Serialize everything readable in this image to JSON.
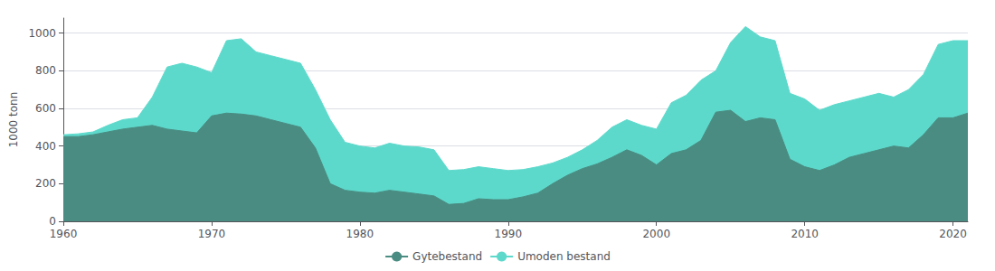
{
  "chart_data": {
    "type": "area",
    "y_label": "1000 tonn",
    "x": [
      1960,
      1961,
      1962,
      1963,
      1964,
      1965,
      1966,
      1967,
      1968,
      1969,
      1970,
      1971,
      1972,
      1973,
      1974,
      1975,
      1976,
      1977,
      1978,
      1979,
      1980,
      1981,
      1982,
      1983,
      1984,
      1985,
      1986,
      1987,
      1988,
      1989,
      1990,
      1991,
      1992,
      1993,
      1994,
      1995,
      1996,
      1997,
      1998,
      1999,
      2000,
      2001,
      2002,
      2003,
      2004,
      2005,
      2006,
      2007,
      2008,
      2009,
      2010,
      2011,
      2012,
      2013,
      2014,
      2015,
      2016,
      2017,
      2018,
      2019,
      2020,
      2021
    ],
    "series": [
      {
        "name": "Gytebestand",
        "color": "#4a8c82",
        "values": [
          450,
          450,
          460,
          475,
          490,
          500,
          510,
          490,
          480,
          470,
          560,
          575,
          570,
          560,
          540,
          520,
          500,
          390,
          200,
          165,
          155,
          150,
          165,
          155,
          145,
          135,
          90,
          95,
          120,
          115,
          115,
          130,
          150,
          200,
          245,
          280,
          305,
          340,
          380,
          350,
          300,
          360,
          380,
          430,
          580,
          590,
          530,
          550,
          540,
          330,
          290,
          270,
          300,
          340,
          360,
          380,
          400,
          390,
          460,
          550,
          550,
          575
        ]
      },
      {
        "name": "Umoden bestand",
        "color": "#5dd9cb",
        "values": [
          460,
          465,
          475,
          510,
          540,
          550,
          660,
          820,
          840,
          820,
          790,
          960,
          970,
          900,
          880,
          860,
          840,
          700,
          540,
          420,
          400,
          390,
          415,
          400,
          395,
          380,
          270,
          275,
          290,
          280,
          270,
          275,
          290,
          310,
          340,
          380,
          430,
          500,
          540,
          510,
          490,
          630,
          670,
          750,
          800,
          950,
          1035,
          980,
          960,
          680,
          650,
          590,
          620,
          640,
          660,
          680,
          660,
          700,
          780,
          940,
          960,
          960
        ]
      }
    ],
    "xlim": [
      1960,
      2021
    ],
    "xticks": [
      1960,
      1970,
      1980,
      1990,
      2000,
      2010,
      2020
    ],
    "ylim": [
      0,
      1080
    ],
    "yticks": [
      0,
      200,
      400,
      600,
      800,
      1000
    ],
    "grid": true,
    "legend": "bottom"
  }
}
